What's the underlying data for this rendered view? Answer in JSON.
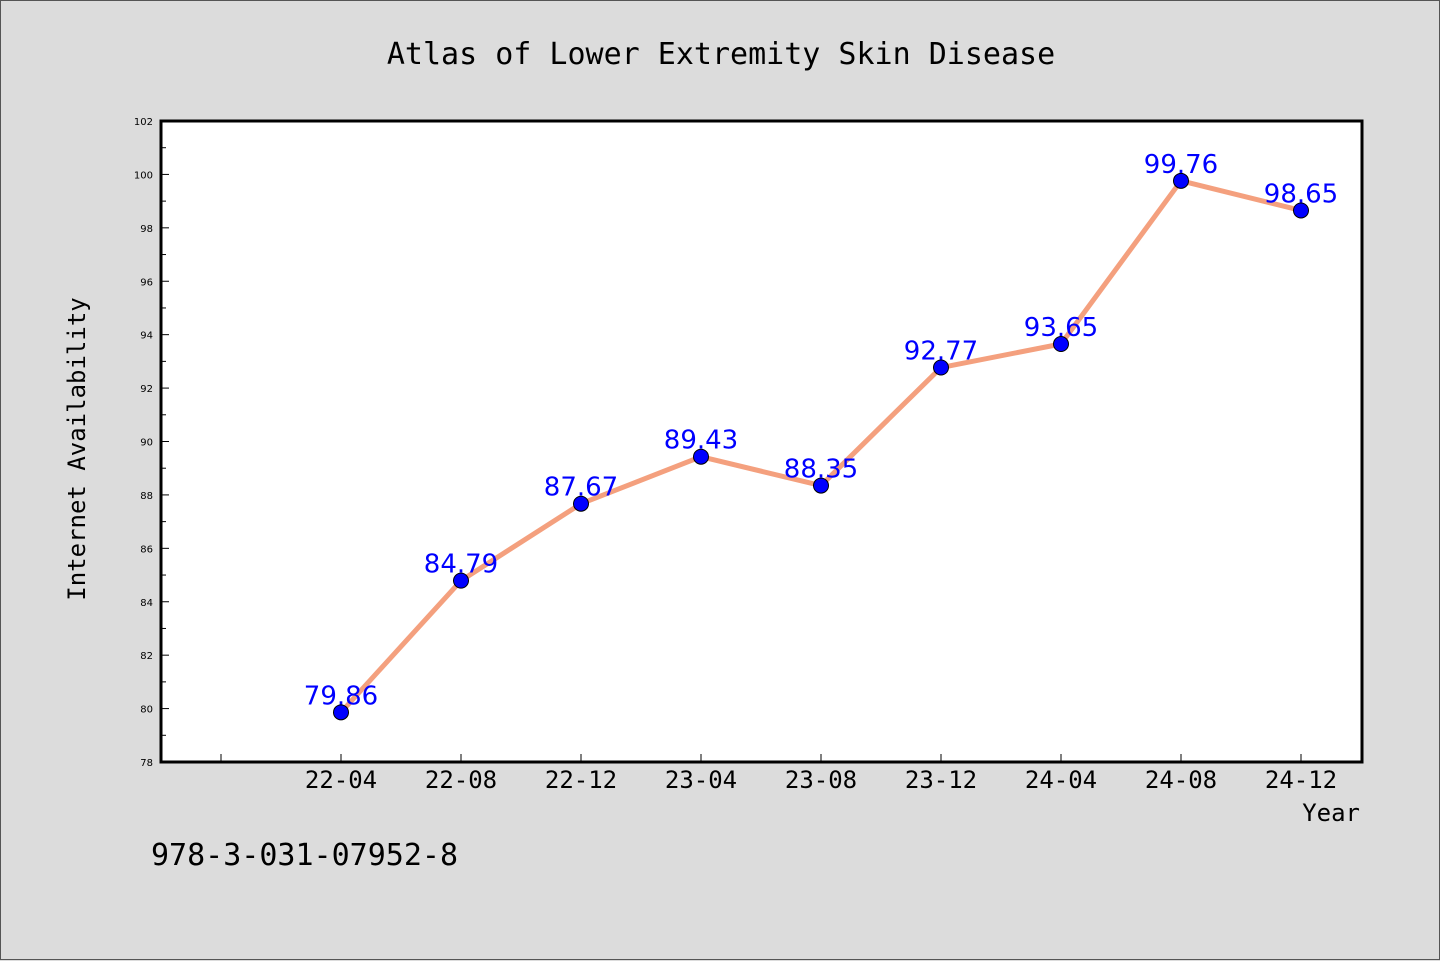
{
  "footer_text": "978-3-031-07952-8",
  "colors": {
    "background": "#dcdcdc",
    "plot_background": "#ffffff",
    "line": "#f4a07e",
    "marker": "#0000ff",
    "label": "#0000ff"
  },
  "chart_data": {
    "type": "line",
    "title": "Atlas of Lower Extremity Skin Disease",
    "xlabel": "Year",
    "ylabel": "Internet Availability",
    "categories": [
      "22-04",
      "22-08",
      "22-12",
      "23-04",
      "23-08",
      "23-12",
      "24-04",
      "24-08",
      "24-12"
    ],
    "series": [
      {
        "values": [
          79.86,
          84.79,
          87.67,
          89.43,
          88.35,
          92.77,
          93.65,
          99.76,
          98.65
        ]
      }
    ],
    "data_labels": [
      "79.86",
      "84.79",
      "87.67",
      "89.43",
      "88.35",
      "92.77",
      "93.65",
      "99.76",
      "98.65"
    ],
    "ylim": [
      78,
      102
    ],
    "yticks": [
      78,
      80,
      82,
      84,
      86,
      88,
      90,
      92,
      94,
      96,
      98,
      100,
      102
    ],
    "grid": false,
    "legend": false
  }
}
